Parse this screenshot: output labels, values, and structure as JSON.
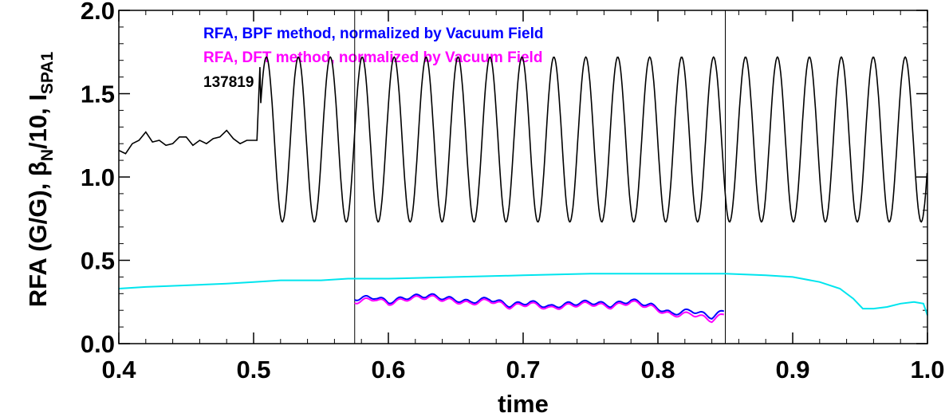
{
  "chart_data": {
    "type": "line",
    "xlabel": "time",
    "ylabel": "RFA (G/G), β",
    "ylabel_sub1": "N",
    "ylabel_mid": "/10, I",
    "ylabel_sub2": "SPA1",
    "xlim": [
      0.4,
      1.0
    ],
    "ylim": [
      0.0,
      2.0
    ],
    "xticks": [
      "0.4",
      "0.5",
      "0.6",
      "0.7",
      "0.8",
      "0.9",
      "1.0"
    ],
    "yticks": [
      "0.0",
      "0.5",
      "1.0",
      "1.5",
      "2.0"
    ],
    "vertical_lines": [
      0.575,
      0.85
    ],
    "annotation": "137819",
    "colors": {
      "bpf": "#0000ff",
      "dft": "#ff00ff",
      "spa": "#000000",
      "beta": "#00e5ee"
    },
    "series": [
      {
        "name": "RFA, BPF method, normalized by Vacuum Field",
        "color": "#0000ff",
        "x": [
          0.575,
          0.59,
          0.6,
          0.615,
          0.63,
          0.645,
          0.66,
          0.675,
          0.69,
          0.705,
          0.72,
          0.735,
          0.75,
          0.765,
          0.78,
          0.795,
          0.81,
          0.825,
          0.84,
          0.85
        ],
        "y": [
          0.27,
          0.28,
          0.25,
          0.28,
          0.29,
          0.27,
          0.25,
          0.27,
          0.23,
          0.25,
          0.22,
          0.24,
          0.25,
          0.23,
          0.26,
          0.23,
          0.18,
          0.2,
          0.16,
          0.2
        ]
      },
      {
        "name": "RFA, DFT method, normalized by Vacuum Field",
        "color": "#ff00ff",
        "x": [
          0.575,
          0.59,
          0.6,
          0.615,
          0.63,
          0.645,
          0.66,
          0.675,
          0.69,
          0.705,
          0.72,
          0.735,
          0.75,
          0.765,
          0.78,
          0.795,
          0.81,
          0.825,
          0.84,
          0.85
        ],
        "y": [
          0.25,
          0.27,
          0.24,
          0.27,
          0.28,
          0.26,
          0.24,
          0.26,
          0.22,
          0.24,
          0.21,
          0.23,
          0.24,
          0.22,
          0.25,
          0.22,
          0.17,
          0.18,
          0.14,
          0.18
        ]
      },
      {
        "name": "I_SPA1",
        "color": "#000000",
        "x": [
          0.4,
          0.405,
          0.41,
          0.415,
          0.42,
          0.425,
          0.43,
          0.435,
          0.44,
          0.445,
          0.45,
          0.455,
          0.46,
          0.465,
          0.47,
          0.475,
          0.48,
          0.485,
          0.49,
          0.495,
          0.5
        ],
        "y": [
          1.16,
          1.14,
          1.2,
          1.22,
          1.27,
          1.21,
          1.22,
          1.19,
          1.2,
          1.24,
          1.24,
          1.19,
          1.22,
          1.2,
          1.23,
          1.24,
          1.28,
          1.23,
          1.2,
          1.22,
          1.22
        ],
        "oscillation": {
          "start": 0.5,
          "end": 1.0,
          "period": 0.0237,
          "max": 1.72,
          "min": 0.73
        }
      },
      {
        "name": "beta_N/10",
        "color": "#00e5ee",
        "x": [
          0.4,
          0.42,
          0.45,
          0.48,
          0.5,
          0.52,
          0.55,
          0.57,
          0.6,
          0.65,
          0.7,
          0.75,
          0.8,
          0.85,
          0.88,
          0.9,
          0.92,
          0.935,
          0.945,
          0.952,
          0.96,
          0.97,
          0.98,
          0.99,
          0.997,
          1.0
        ],
        "y": [
          0.33,
          0.34,
          0.35,
          0.36,
          0.37,
          0.38,
          0.38,
          0.39,
          0.39,
          0.4,
          0.41,
          0.42,
          0.42,
          0.42,
          0.41,
          0.4,
          0.37,
          0.33,
          0.27,
          0.21,
          0.21,
          0.22,
          0.24,
          0.25,
          0.24,
          0.17
        ]
      }
    ]
  }
}
